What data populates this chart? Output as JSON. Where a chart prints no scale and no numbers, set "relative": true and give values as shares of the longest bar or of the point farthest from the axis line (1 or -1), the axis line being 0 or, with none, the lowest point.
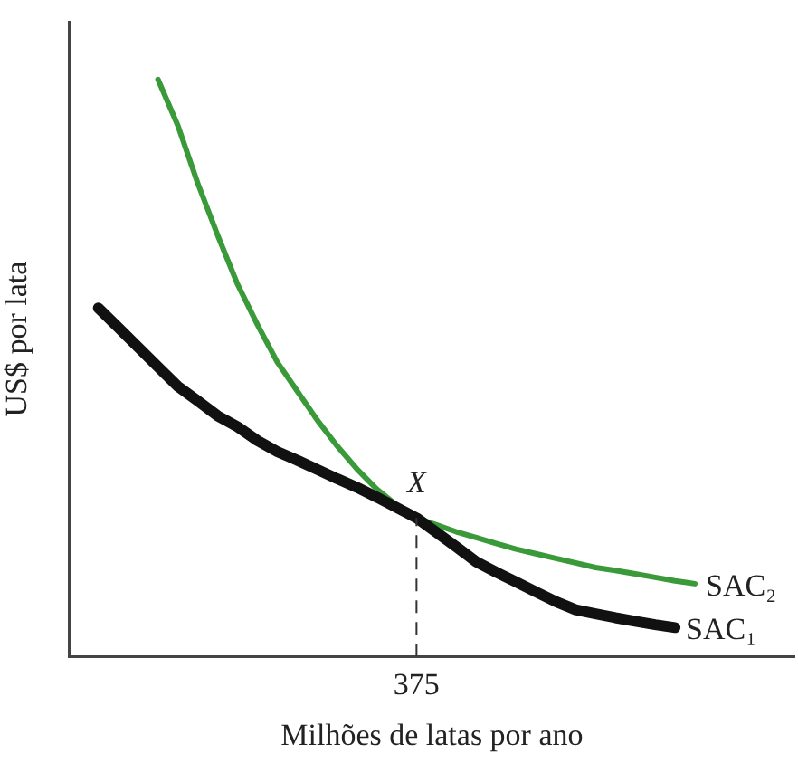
{
  "chart_data": {
    "type": "line",
    "relative": true,
    "xlabel": "Milhões de latas por ano",
    "ylabel": "US$ por lata",
    "categories": [
      null,
      null,
      null,
      null,
      null,
      null,
      null,
      null,
      null,
      null,
      null,
      null,
      null,
      null,
      null,
      null,
      null,
      null,
      null,
      null,
      null,
      null,
      null,
      null,
      null,
      null,
      null,
      null,
      null,
      null,
      null
    ],
    "series": [
      {
        "name": "SAC₁",
        "color": "#111111",
        "values": [
          0.604,
          0.57,
          0.536,
          0.502,
          0.468,
          0.443,
          0.417,
          0.398,
          0.374,
          0.355,
          0.34,
          0.324,
          0.308,
          0.293,
          0.276,
          0.258,
          0.24,
          0.215,
          0.19,
          0.164,
          0.146,
          0.129,
          0.112,
          0.095,
          0.081,
          0.074,
          0.067,
          0.061,
          0.055,
          0.05,
          null
        ]
      },
      {
        "name": "SAC₂",
        "color": "#3a9a3a",
        "values": [
          null,
          null,
          null,
          1,
          0.92,
          0.82,
          0.73,
          0.645,
          0.575,
          0.51,
          0.46,
          0.41,
          0.365,
          0.325,
          0.29,
          0.262,
          0.24,
          0.228,
          0.216,
          0.206,
          0.196,
          0.186,
          0.178,
          0.17,
          0.162,
          0.154,
          0.149,
          0.143,
          0.137,
          0.131,
          0.126
        ]
      }
    ],
    "annotations": [
      {
        "text": "X",
        "y": 0.24
      },
      "375"
    ]
  }
}
